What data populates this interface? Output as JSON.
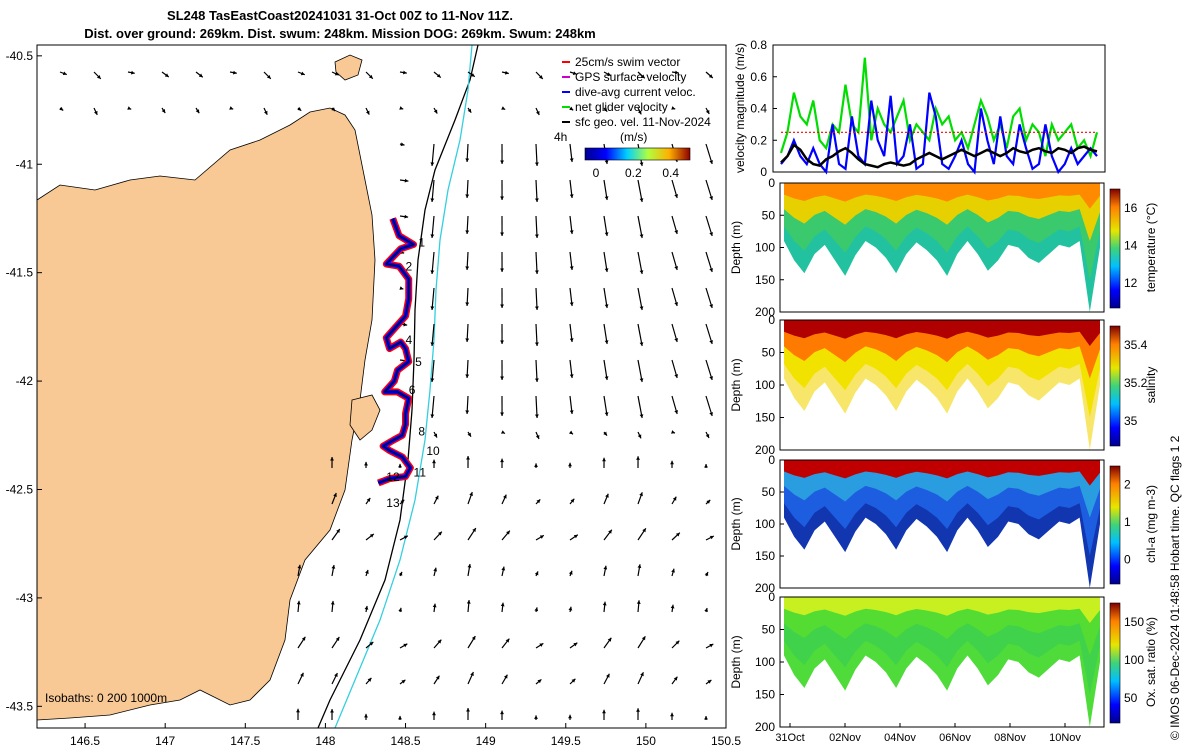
{
  "title_line1": "SL248 TasEastCoast20241031 31-Oct 00Z to 11-Nov 11Z.",
  "title_line2": "Dist. over ground: 269km. Dist. swum: 248km. Mission DOG: 269km. Swum: 248km",
  "side_text": "© IMOS 06-Dec-2024 01:48:58 Hobart time. QC flags 1  2",
  "chart_data": [
    {
      "type": "scatter",
      "name": "map",
      "x_ticks": [
        146.5,
        147,
        147.5,
        148,
        148.5,
        149,
        149.5,
        150,
        150.5
      ],
      "y_ticks": [
        -40.5,
        -41,
        -41.5,
        -42,
        -42.5,
        -43,
        -43.5
      ],
      "xlim": [
        146.2,
        150.5
      ],
      "ylim": [
        -43.6,
        -40.45
      ],
      "legend": [
        {
          "label": "25cm/s swim vector",
          "color": "#ff0000"
        },
        {
          "label": "GPS surface velocity",
          "color": "#cc00cc"
        },
        {
          "label": "dive-avg current veloc.",
          "color": "#0000ff"
        },
        {
          "label": "net glider velocity",
          "color": "#00dd00"
        },
        {
          "label": "sfc geo. vel. 11-Nov-2024",
          "color": "#000000"
        }
      ],
      "arrow_scale_label": "4h",
      "colorbar_title": "(m/s)",
      "colorbar_ticks": [
        0,
        0.2,
        0.4
      ],
      "isobaths_label": "Isobaths: 0   200  1000m",
      "day_labels": [
        {
          "n": "1",
          "lon": 148.58,
          "lat": -41.38
        },
        {
          "n": "2",
          "lon": 148.5,
          "lat": -41.49
        },
        {
          "n": "4",
          "lon": 148.5,
          "lat": -41.83
        },
        {
          "n": "5",
          "lon": 148.56,
          "lat": -41.93
        },
        {
          "n": "6",
          "lon": 148.52,
          "lat": -42.06
        },
        {
          "n": "8",
          "lon": 148.58,
          "lat": -42.25
        },
        {
          "n": "10",
          "lon": 148.63,
          "lat": -42.34
        },
        {
          "n": "11",
          "lon": 148.55,
          "lat": -42.44
        },
        {
          "n": "12",
          "lon": 148.38,
          "lat": -42.46
        },
        {
          "n": "13",
          "lon": 148.38,
          "lat": -42.58
        }
      ],
      "track": [
        [
          148.42,
          -41.25
        ],
        [
          148.46,
          -41.33
        ],
        [
          148.55,
          -41.37
        ],
        [
          148.47,
          -41.39
        ],
        [
          148.38,
          -41.46
        ],
        [
          148.46,
          -41.47
        ],
        [
          148.52,
          -41.53
        ],
        [
          148.52,
          -41.62
        ],
        [
          148.5,
          -41.7
        ],
        [
          148.44,
          -41.75
        ],
        [
          148.38,
          -41.8
        ],
        [
          148.4,
          -41.85
        ],
        [
          148.47,
          -41.82
        ],
        [
          148.5,
          -41.85
        ],
        [
          148.52,
          -41.91
        ],
        [
          148.45,
          -41.95
        ],
        [
          148.43,
          -42.0
        ],
        [
          148.37,
          -42.05
        ],
        [
          148.45,
          -42.05
        ],
        [
          148.52,
          -42.08
        ],
        [
          148.5,
          -42.15
        ],
        [
          148.5,
          -42.2
        ],
        [
          148.48,
          -42.25
        ],
        [
          148.43,
          -42.27
        ],
        [
          148.36,
          -42.3
        ],
        [
          148.4,
          -42.32
        ],
        [
          148.48,
          -42.35
        ],
        [
          148.53,
          -42.4
        ],
        [
          148.5,
          -42.44
        ],
        [
          148.4,
          -42.45
        ],
        [
          148.33,
          -42.47
        ]
      ]
    },
    {
      "type": "line",
      "name": "velocity",
      "ylabel": "velocity magnitude (m/s)",
      "ylim": [
        0,
        0.8
      ],
      "y_ticks": [
        0,
        0.2,
        0.4,
        0.6,
        0.8
      ],
      "series": [
        {
          "name": "net glider velocity",
          "color": "#00dd00",
          "values": [
            0.12,
            0.25,
            0.5,
            0.35,
            0.3,
            0.45,
            0.2,
            0.15,
            0.3,
            0.25,
            0.55,
            0.3,
            0.25,
            0.72,
            0.2,
            0.4,
            0.3,
            0.25,
            0.35,
            0.45,
            0.2,
            0.3,
            0.25,
            0.2,
            0.4,
            0.3,
            0.35,
            0.2,
            0.25,
            0.15,
            0.3,
            0.45,
            0.35,
            0.2,
            0.3,
            0.15,
            0.35,
            0.4,
            0.2,
            0.3,
            0.25,
            0.1,
            0.3,
            0.2,
            0.25,
            0.3,
            0.15,
            0.2,
            0.1,
            0.25
          ]
        },
        {
          "name": "dive-avg current",
          "color": "#0000ff",
          "values": [
            0.05,
            0.1,
            0.2,
            0.1,
            0.05,
            0.15,
            0.05,
            0.0,
            0.3,
            0.05,
            0.02,
            0.35,
            0.1,
            0.05,
            0.45,
            0.2,
            0.1,
            0.48,
            0.05,
            0.1,
            0.3,
            0.02,
            0.05,
            0.5,
            0.35,
            0.05,
            0.02,
            0.1,
            0.2,
            0.05,
            0.0,
            0.4,
            0.2,
            0.05,
            0.35,
            0.1,
            0.05,
            0.3,
            0.15,
            0.02,
            0.05,
            0.3,
            0.1,
            0.0,
            0.05,
            0.15,
            0.05,
            0.1,
            0.15,
            0.1
          ]
        },
        {
          "name": "swim speed",
          "color": "#ff0000",
          "values": [
            0.25,
            0.25,
            0.25,
            0.25,
            0.25,
            0.25,
            0.25,
            0.25,
            0.25,
            0.25,
            0.25,
            0.25,
            0.25,
            0.25,
            0.25,
            0.25,
            0.25,
            0.25,
            0.25,
            0.25,
            0.25,
            0.25,
            0.25,
            0.25,
            0.25,
            0.25,
            0.25,
            0.25,
            0.25,
            0.25,
            0.25,
            0.25,
            0.25,
            0.25,
            0.25,
            0.25,
            0.25,
            0.25,
            0.25,
            0.25,
            0.25,
            0.25,
            0.25,
            0.25,
            0.25,
            0.25,
            0.25,
            0.25,
            0.25,
            0.25
          ]
        },
        {
          "name": "surface geo velocity",
          "color": "#000000",
          "values": [
            0.06,
            0.1,
            0.17,
            0.14,
            0.08,
            0.05,
            0.04,
            0.08,
            0.1,
            0.13,
            0.15,
            0.12,
            0.08,
            0.05,
            0.04,
            0.03,
            0.05,
            0.06,
            0.05,
            0.04,
            0.05,
            0.08,
            0.1,
            0.12,
            0.1,
            0.08,
            0.1,
            0.12,
            0.14,
            0.12,
            0.1,
            0.12,
            0.14,
            0.12,
            0.1,
            0.12,
            0.15,
            0.13,
            0.12,
            0.14,
            0.15,
            0.13,
            0.12,
            0.15,
            0.14,
            0.12,
            0.15,
            0.16,
            0.14,
            0.13
          ]
        }
      ]
    },
    {
      "type": "heatmap",
      "name": "temperature",
      "ylabel": "Depth (m)",
      "cbar_label": "temperature (°C)",
      "cbar_ticks": [
        12,
        14,
        16
      ],
      "y_ticks": [
        0,
        50,
        100,
        150,
        200
      ]
    },
    {
      "type": "heatmap",
      "name": "salinity",
      "ylabel": "Depth (m)",
      "cbar_label": "salinity",
      "cbar_ticks": [
        35,
        35.2,
        35.4
      ],
      "y_ticks": [
        0,
        50,
        100,
        150,
        200
      ]
    },
    {
      "type": "heatmap",
      "name": "chla",
      "ylabel": "Depth (m)",
      "cbar_label": "chl-a (mg m-3)",
      "cbar_ticks": [
        0,
        1,
        2
      ],
      "y_ticks": [
        0,
        50,
        100,
        150,
        200
      ]
    },
    {
      "type": "heatmap",
      "name": "oxygen",
      "ylabel": "Depth (m)",
      "cbar_label": "Ox. sat. ratio (%)",
      "cbar_ticks": [
        50,
        100,
        150
      ],
      "y_ticks": [
        0,
        50,
        100,
        150,
        200
      ],
      "x_ticks": [
        "31Oct",
        "02Nov",
        "04Nov",
        "06Nov",
        "08Nov",
        "10Nov"
      ]
    }
  ]
}
